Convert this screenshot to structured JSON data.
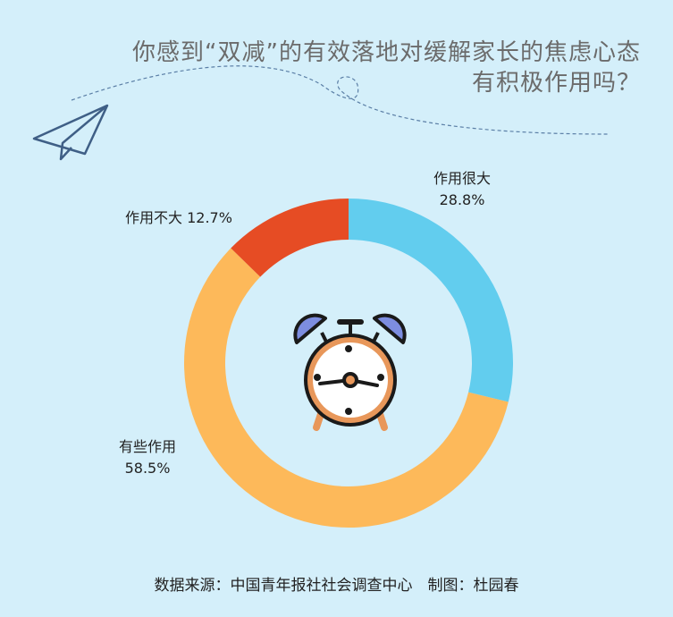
{
  "title_line1": "你感到“双减”的有效落地对缓解家长的焦虑心态",
  "title_line2": "有积极作用吗？",
  "source": "数据来源：中国青年报社社会调查中心　制图：杜园春",
  "chart_data": {
    "type": "pie",
    "donut": true,
    "title": "你感到“双减”的有效落地对缓解家长的焦虑心态有积极作用吗？",
    "slices": [
      {
        "label": "作用很大",
        "value": 28.8,
        "value_label": "28.8%",
        "color": "#62cdee"
      },
      {
        "label": "有些作用",
        "value": 58.5,
        "value_label": "58.5%",
        "color": "#fdb95a"
      },
      {
        "label": "作用不大",
        "value": 12.7,
        "value_label": "12.7%",
        "color": "#e64c24"
      }
    ],
    "start": "top, clockwise"
  },
  "icons": [
    "paper-plane-icon",
    "alarm-clock-icon"
  ]
}
